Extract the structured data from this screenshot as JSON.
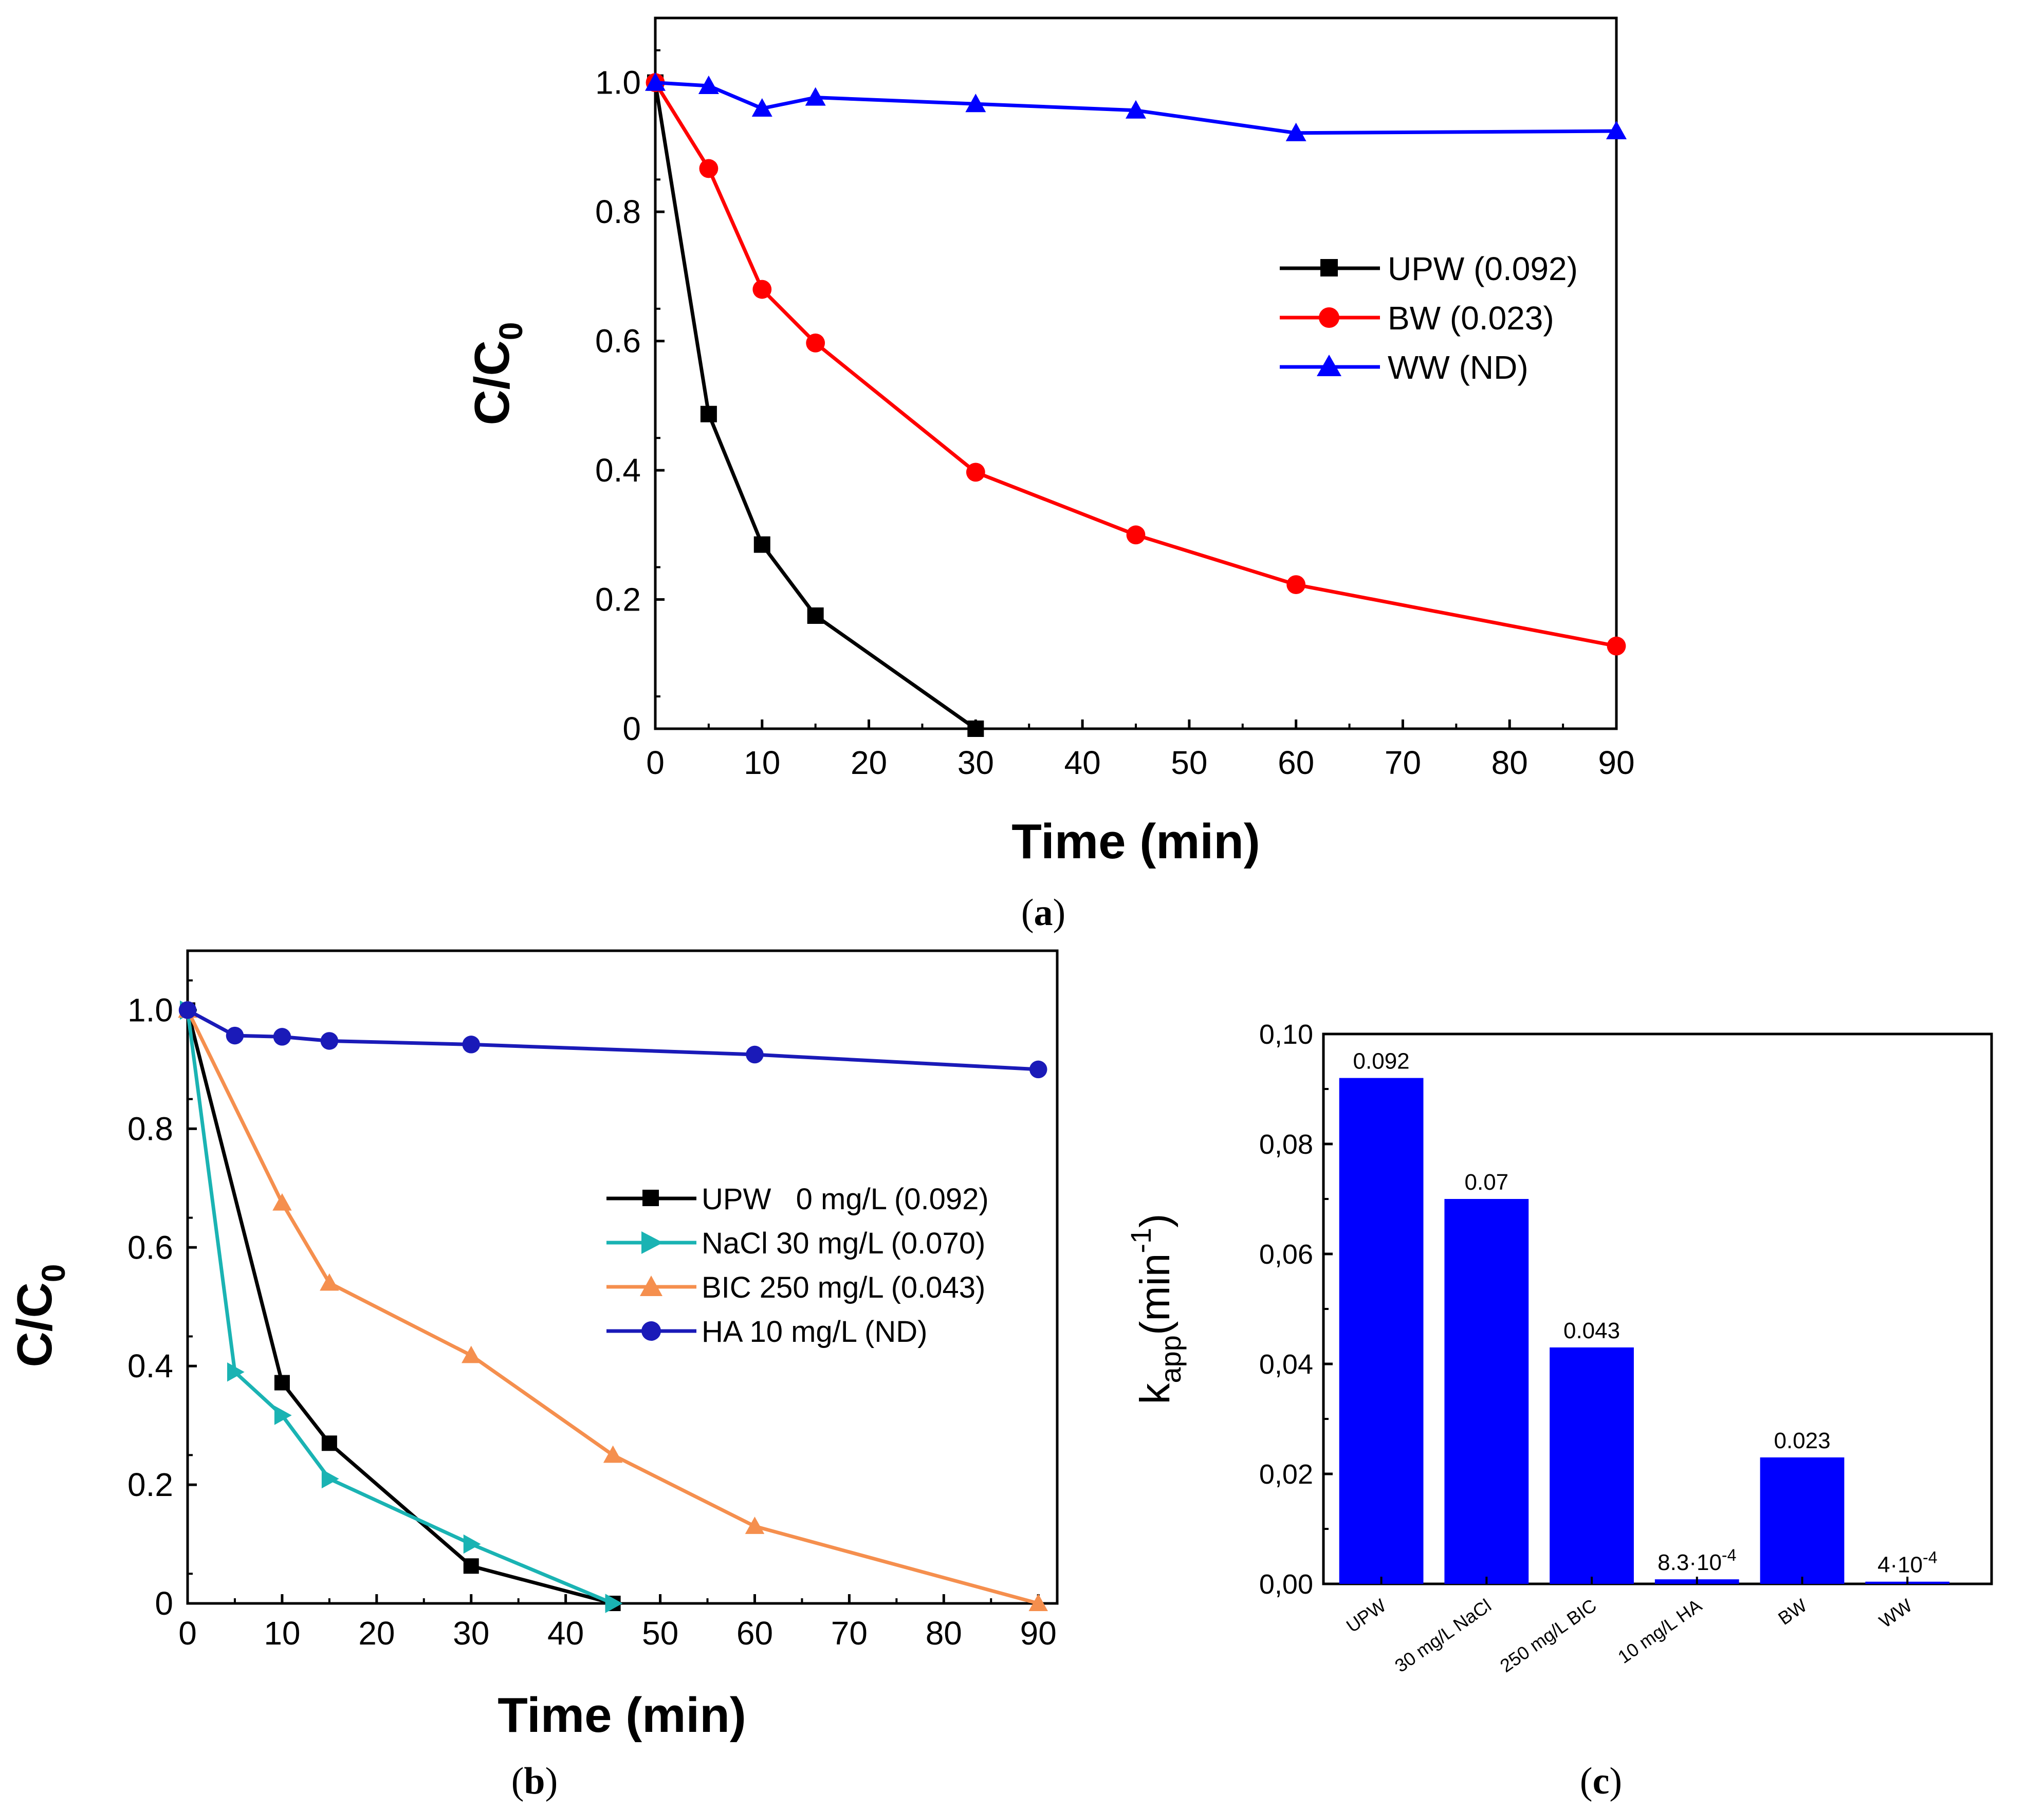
{
  "colors": {
    "black": "#000000",
    "red": "#ff0000",
    "blue": "#0000ff",
    "navy": "#1a1ab8",
    "teal": "#1ab3b3",
    "orange": "#f58f4e"
  },
  "panels": {
    "a": {
      "caption_letter": "a"
    },
    "b": {
      "caption_letter": "b"
    },
    "c": {
      "caption_letter": "c"
    }
  },
  "chart_data": [
    {
      "id": "a",
      "type": "line",
      "xlabel": "Time (min)",
      "ylabel_main": "C/C",
      "ylabel_sub": "0",
      "xlim": [
        0,
        90
      ],
      "ylim": [
        0,
        1.1
      ],
      "xticks": [
        "0",
        "10",
        "20",
        "30",
        "40",
        "50",
        "60",
        "70",
        "80",
        "90"
      ],
      "yticks": [
        "0",
        "0.2",
        "0.4",
        "0.6",
        "0.8",
        "1.0"
      ],
      "grid": false,
      "legend_position": "center-right",
      "series": [
        {
          "name": "UPW (0.092)",
          "color": "#000000",
          "marker": "square",
          "x": [
            0,
            5,
            10,
            15,
            30
          ],
          "y": [
            1.0,
            0.487,
            0.285,
            0.175,
            0.0
          ]
        },
        {
          "name": "BW (0.023)",
          "color": "#ff0000",
          "marker": "circle",
          "x": [
            0,
            5,
            10,
            15,
            30,
            45,
            60,
            90
          ],
          "y": [
            1.0,
            0.867,
            0.68,
            0.597,
            0.397,
            0.3,
            0.223,
            0.128
          ]
        },
        {
          "name": "WW (ND)",
          "color": "#0000ff",
          "marker": "triangle",
          "x": [
            0,
            5,
            10,
            15,
            30,
            45,
            60,
            90
          ],
          "y": [
            1.0,
            0.995,
            0.96,
            0.977,
            0.967,
            0.957,
            0.922,
            0.925
          ]
        }
      ]
    },
    {
      "id": "b",
      "type": "line",
      "xlabel": "Time (min)",
      "ylabel_main": "C/C",
      "ylabel_sub": "0",
      "xlim": [
        0,
        92
      ],
      "ylim": [
        0,
        1.1
      ],
      "xticks": [
        "0",
        "10",
        "20",
        "30",
        "40",
        "50",
        "60",
        "70",
        "80",
        "90"
      ],
      "yticks": [
        "0",
        "0.2",
        "0.4",
        "0.6",
        "0.8",
        "1.0"
      ],
      "grid": false,
      "legend_position": "center-right",
      "series": [
        {
          "name": "UPW   0 mg/L (0.092)",
          "color": "#000000",
          "marker": "square",
          "x": [
            0,
            10,
            15,
            30,
            45
          ],
          "y": [
            1.0,
            0.372,
            0.27,
            0.063,
            0.0
          ]
        },
        {
          "name": "NaCl 30 mg/L (0.070)",
          "color": "#1ab3b3",
          "marker": "triangle-right",
          "x": [
            0,
            5,
            10,
            15,
            30,
            45
          ],
          "y": [
            1.0,
            0.39,
            0.317,
            0.21,
            0.1,
            0.0
          ]
        },
        {
          "name": "BIC 250 mg/L (0.043)",
          "color": "#f58f4e",
          "marker": "triangle",
          "x": [
            0,
            10,
            15,
            30,
            45,
            60,
            90
          ],
          "y": [
            1.0,
            0.675,
            0.54,
            0.418,
            0.25,
            0.13,
            0.0
          ]
        },
        {
          "name": "HA 10 mg/L (ND)",
          "color": "#1a1ab8",
          "marker": "circle",
          "x": [
            0,
            5,
            10,
            15,
            30,
            60,
            90
          ],
          "y": [
            1.0,
            0.957,
            0.955,
            0.948,
            0.942,
            0.925,
            0.9
          ]
        }
      ]
    },
    {
      "id": "c",
      "type": "bar",
      "xlabel": "",
      "ylabel_main": "k",
      "ylabel_sub": "app",
      "ylabel_rest": "(min",
      "ylabel_sup": "-1",
      "ylabel_close": ")",
      "ylim": [
        0,
        0.1
      ],
      "yticks": [
        "0,00",
        "0,02",
        "0,04",
        "0,06",
        "0,08",
        "0,10"
      ],
      "grid": false,
      "bar_color": "#0000ff",
      "categories": [
        "UPW",
        "30 mg/L NaCl",
        "250 mg/L BIC",
        "10 mg/L HA",
        "BW",
        "WW"
      ],
      "values": [
        0.092,
        0.07,
        0.043,
        0.00083,
        0.023,
        0.0004
      ],
      "data_labels": [
        {
          "base": "0.092",
          "exp": ""
        },
        {
          "base": "0.07",
          "exp": ""
        },
        {
          "base": "0.043",
          "exp": ""
        },
        {
          "base": "8.3·10",
          "exp": "-4"
        },
        {
          "base": "0.023",
          "exp": ""
        },
        {
          "base": "4·10",
          "exp": "-4"
        }
      ]
    }
  ]
}
